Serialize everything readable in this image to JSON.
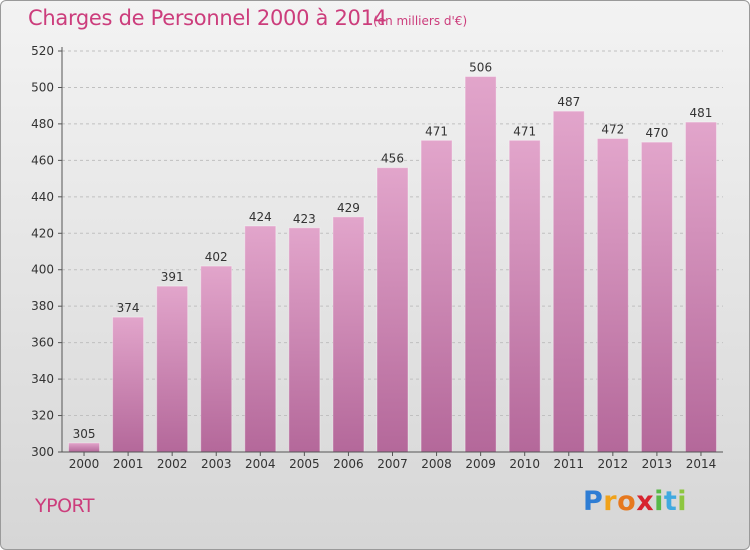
{
  "title": "Charges de Personnel 2000 à 2014",
  "subtitle": "(en milliers d'€)",
  "commune": "YPORT",
  "logo": {
    "letters": [
      "P",
      "r",
      "o",
      "x",
      "i",
      "t",
      "i"
    ],
    "colors": [
      "#2e7dd4",
      "#f0a21a",
      "#e6781e",
      "#d7242f",
      "#58b948",
      "#3fa9e0",
      "#8dc63f"
    ]
  },
  "colors": {
    "accent": "#cc3d7c",
    "bar_top": "#e2a5cb",
    "bar_bottom": "#b4689a",
    "grid": "#c0c0c0",
    "axis": "#555555",
    "label": "#333333"
  },
  "chart_data": {
    "type": "bar",
    "title": "Charges de Personnel 2000 à 2014",
    "subtitle": "(en milliers d'€)",
    "categories": [
      "2000",
      "2001",
      "2002",
      "2003",
      "2004",
      "2005",
      "2006",
      "2007",
      "2008",
      "2009",
      "2010",
      "2011",
      "2012",
      "2013",
      "2014"
    ],
    "values": [
      305,
      374,
      391,
      402,
      424,
      423,
      429,
      456,
      471,
      506,
      471,
      487,
      472,
      470,
      481
    ],
    "ylim": [
      300,
      520
    ],
    "yticks": [
      300,
      320,
      340,
      360,
      380,
      400,
      420,
      440,
      460,
      480,
      500,
      520
    ],
    "grid": true,
    "data_labels": true
  }
}
